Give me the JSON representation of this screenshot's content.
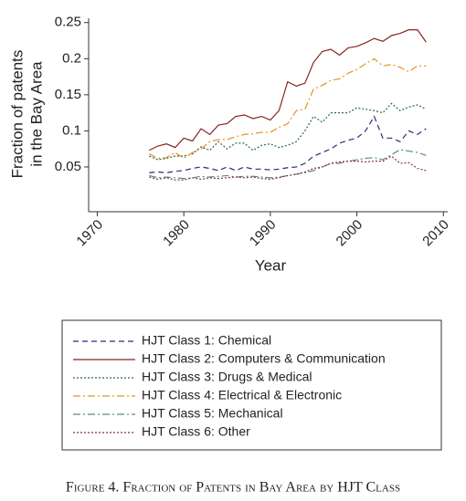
{
  "chart_data": {
    "type": "line",
    "title": "Figure 4. Fraction of Patents in Bay Area by HJT Class",
    "xlabel": "Year",
    "ylabel": [
      "Fraction of patents",
      "in the Bay Area"
    ],
    "x": [
      1976,
      1977,
      1978,
      1979,
      1980,
      1981,
      1982,
      1983,
      1984,
      1985,
      1986,
      1987,
      1988,
      1989,
      1990,
      1991,
      1992,
      1993,
      1994,
      1995,
      1996,
      1997,
      1998,
      1999,
      2000,
      2001,
      2002,
      2003,
      2004,
      2005,
      2006,
      2007,
      2008
    ],
    "xlim": [
      1969,
      2010.5
    ],
    "xticks": [
      1970,
      1980,
      1990,
      2000,
      2010
    ],
    "ylim": [
      -0.012,
      0.256
    ],
    "yticks": [
      0.05,
      0.1,
      0.15,
      0.2,
      0.25
    ],
    "series": [
      {
        "name": "HJT Class 1: Chemical",
        "color": "#2b2b7a",
        "line_style": "dashed",
        "values": [
          0.042,
          0.043,
          0.042,
          0.044,
          0.045,
          0.048,
          0.05,
          0.048,
          0.045,
          0.05,
          0.045,
          0.05,
          0.047,
          0.047,
          0.046,
          0.047,
          0.049,
          0.05,
          0.055,
          0.065,
          0.07,
          0.075,
          0.083,
          0.087,
          0.09,
          0.1,
          0.12,
          0.09,
          0.09,
          0.085,
          0.1,
          0.095,
          0.103
        ]
      },
      {
        "name": "HJT Class 2: Computers & Communication",
        "color": "#8b2222",
        "line_style": "solid",
        "values": [
          0.073,
          0.079,
          0.082,
          0.077,
          0.09,
          0.086,
          0.103,
          0.095,
          0.108,
          0.11,
          0.12,
          0.122,
          0.117,
          0.12,
          0.115,
          0.128,
          0.168,
          0.162,
          0.166,
          0.195,
          0.21,
          0.213,
          0.205,
          0.215,
          0.217,
          0.222,
          0.228,
          0.224,
          0.232,
          0.235,
          0.24,
          0.24,
          0.223
        ]
      },
      {
        "name": "HJT Class 3: Drugs & Medical",
        "color": "#2e6b3a",
        "line_style": "dotted",
        "values": [
          0.065,
          0.06,
          0.062,
          0.065,
          0.065,
          0.068,
          0.078,
          0.073,
          0.085,
          0.075,
          0.083,
          0.083,
          0.073,
          0.08,
          0.082,
          0.077,
          0.08,
          0.085,
          0.1,
          0.12,
          0.112,
          0.125,
          0.125,
          0.125,
          0.132,
          0.13,
          0.128,
          0.125,
          0.138,
          0.128,
          0.133,
          0.136,
          0.13
        ]
      },
      {
        "name": "HJT Class 4: Electrical & Electronic",
        "color": "#e8902a",
        "line_style": "dashdot",
        "values": [
          0.068,
          0.062,
          0.063,
          0.07,
          0.062,
          0.07,
          0.075,
          0.085,
          0.088,
          0.088,
          0.092,
          0.095,
          0.096,
          0.098,
          0.098,
          0.105,
          0.11,
          0.128,
          0.13,
          0.158,
          0.163,
          0.17,
          0.172,
          0.18,
          0.185,
          0.193,
          0.2,
          0.19,
          0.192,
          0.188,
          0.182,
          0.19,
          0.19
        ]
      },
      {
        "name": "HJT Class 5: Mechanical",
        "color": "#5c8a8a",
        "line_style": "dashdot",
        "values": [
          0.038,
          0.035,
          0.036,
          0.035,
          0.034,
          0.035,
          0.037,
          0.036,
          0.037,
          0.038,
          0.036,
          0.037,
          0.037,
          0.036,
          0.035,
          0.036,
          0.038,
          0.04,
          0.042,
          0.045,
          0.05,
          0.055,
          0.055,
          0.058,
          0.06,
          0.062,
          0.063,
          0.06,
          0.067,
          0.074,
          0.072,
          0.07,
          0.066
        ]
      },
      {
        "name": "HJT Class 6: Other",
        "color": "#8a2d4a",
        "line_style": "dotted",
        "values": [
          0.036,
          0.033,
          0.035,
          0.032,
          0.032,
          0.035,
          0.033,
          0.035,
          0.034,
          0.035,
          0.036,
          0.035,
          0.036,
          0.034,
          0.033,
          0.035,
          0.038,
          0.04,
          0.043,
          0.048,
          0.05,
          0.055,
          0.057,
          0.058,
          0.058,
          0.057,
          0.058,
          0.058,
          0.065,
          0.055,
          0.056,
          0.048,
          0.045
        ]
      }
    ]
  }
}
